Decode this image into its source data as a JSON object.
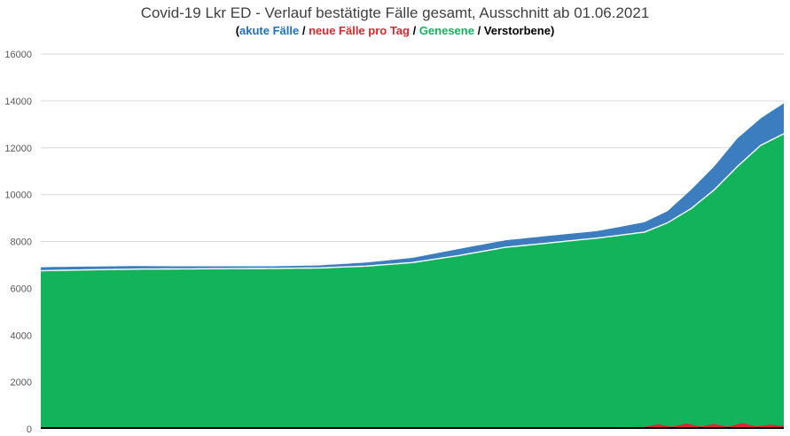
{
  "title": "Covid-19 Lkr ED - Verlauf bestätigte Fälle gesamt, Ausschnitt ab 01.06.2021",
  "subtitle": {
    "open": "(",
    "akute": "akute Fälle",
    "sep1": " / ",
    "neue": "neue Fälle pro Tag",
    "sep2": " / ",
    "genesene": "Genesene",
    "sep3": " / ",
    "verstorbene": "Verstorbene",
    "close": ")"
  },
  "colors": {
    "akute": "#3b7dbf",
    "neue": "#e0262c",
    "genesene": "#13b35b",
    "verstorbene": "#000000",
    "grid": "#d9d9d9"
  },
  "chart_data": {
    "type": "area",
    "stacked": true,
    "ylim": [
      0,
      16000
    ],
    "yticks": [
      "0",
      "2000",
      "4000",
      "6000",
      "8000",
      "10000",
      "12000",
      "14000",
      "16000"
    ],
    "grid": true,
    "n_days": 160,
    "series": [
      {
        "name": "Genesene",
        "x": [
          0,
          10,
          20,
          30,
          40,
          50,
          60,
          70,
          80,
          90,
          100,
          110,
          120,
          130,
          135,
          140,
          145,
          150,
          155,
          160
        ],
        "values": [
          6750,
          6790,
          6820,
          6830,
          6840,
          6850,
          6870,
          6950,
          7100,
          7400,
          7750,
          7950,
          8150,
          8400,
          8800,
          9400,
          10200,
          11200,
          12100,
          12600
        ]
      },
      {
        "name": "akute Fälle",
        "x": [
          0,
          10,
          20,
          30,
          40,
          50,
          60,
          70,
          80,
          90,
          100,
          110,
          120,
          130,
          135,
          140,
          145,
          150,
          155,
          160
        ],
        "values": [
          150,
          140,
          130,
          110,
          100,
          90,
          110,
          150,
          200,
          280,
          300,
          300,
          300,
          420,
          500,
          800,
          1000,
          1200,
          1150,
          1300
        ]
      },
      {
        "name": "neue Fälle pro Tag",
        "x": [
          0,
          20,
          40,
          60,
          80,
          100,
          120,
          130,
          133,
          136,
          139,
          142,
          145,
          148,
          151,
          154,
          157,
          160
        ],
        "values": [
          10,
          5,
          5,
          10,
          20,
          40,
          60,
          80,
          200,
          90,
          230,
          100,
          210,
          90,
          250,
          110,
          180,
          120
        ]
      },
      {
        "name": "Verstorbene",
        "x": [
          0,
          160
        ],
        "values": [
          0,
          0
        ]
      }
    ]
  }
}
